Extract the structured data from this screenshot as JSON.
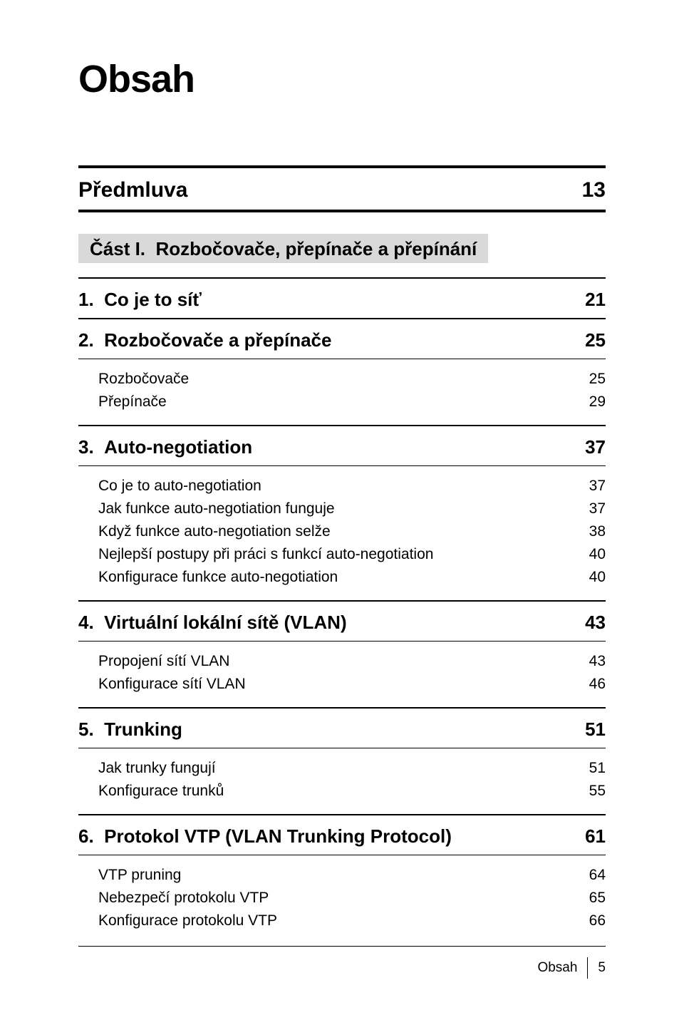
{
  "title": "Obsah",
  "preface": {
    "label": "Předmluva",
    "page": "13"
  },
  "part": {
    "label": "Část I.",
    "title": "Rozbočovače, přepínače a přepínání"
  },
  "chapters": [
    {
      "num": "1.",
      "title": "Co je to síť",
      "page": "21",
      "subs": []
    },
    {
      "num": "2.",
      "title": "Rozbočovače a přepínače",
      "page": "25",
      "subs": [
        {
          "label": "Rozbočovače",
          "page": "25"
        },
        {
          "label": "Přepínače",
          "page": "29"
        }
      ]
    },
    {
      "num": "3.",
      "title": "Auto-negotiation",
      "page": "37",
      "subs": [
        {
          "label": "Co je to auto-negotiation",
          "page": "37"
        },
        {
          "label": "Jak funkce auto-negotiation funguje",
          "page": "37"
        },
        {
          "label": "Když funkce auto-negotiation selže",
          "page": "38"
        },
        {
          "label": "Nejlepší postupy při práci s funkcí auto-negotiation",
          "page": "40"
        },
        {
          "label": "Konfigurace funkce auto-negotiation",
          "page": "40"
        }
      ]
    },
    {
      "num": "4.",
      "title": "Virtuální lokální sítě (VLAN)",
      "page": "43",
      "subs": [
        {
          "label": "Propojení sítí VLAN",
          "page": "43"
        },
        {
          "label": "Konfigurace sítí VLAN",
          "page": "46"
        }
      ]
    },
    {
      "num": "5.",
      "title": "Trunking",
      "page": "51",
      "subs": [
        {
          "label": "Jak trunky fungují",
          "page": "51"
        },
        {
          "label": "Konfigurace trunků",
          "page": "55"
        }
      ]
    },
    {
      "num": "6.",
      "title": "Protokol VTP (VLAN Trunking Protocol)",
      "page": "61",
      "subs": [
        {
          "label": "VTP pruning",
          "page": "64"
        },
        {
          "label": "Nebezpečí protokolu VTP",
          "page": "65"
        },
        {
          "label": "Konfigurace protokolu VTP",
          "page": "66"
        }
      ]
    }
  ],
  "footer": {
    "label": "Obsah",
    "page": "5"
  }
}
